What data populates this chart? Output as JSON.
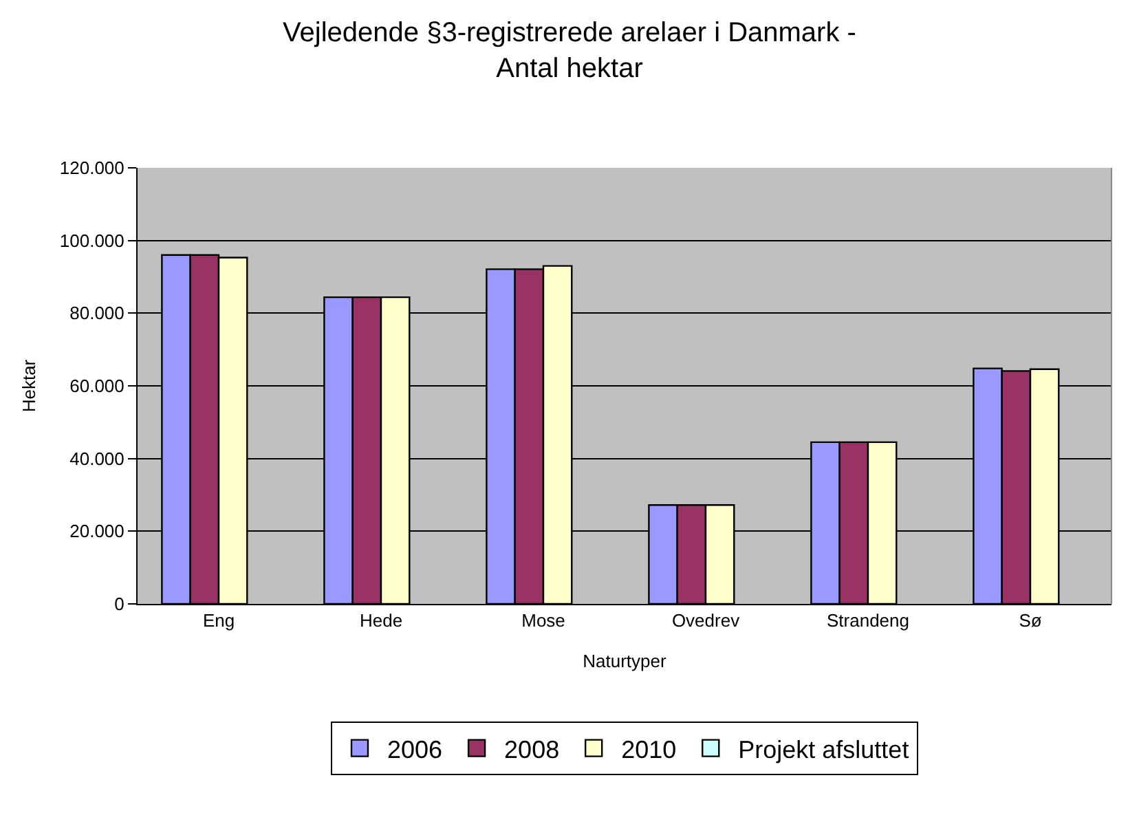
{
  "chart_data": {
    "type": "bar",
    "title": "Vejledende §3-registrerede arelaer i Danmark -\nAntal hektar",
    "xlabel": "Naturtyper",
    "ylabel": "Hektar",
    "categories": [
      "Eng",
      "Hede",
      "Mose",
      "Ovedrev",
      "Strandeng",
      "Sø"
    ],
    "series": [
      {
        "name": "2006",
        "color": "#9999ff",
        "values": [
          96000,
          84400,
          92100,
          27200,
          44500,
          64800
        ]
      },
      {
        "name": "2008",
        "color": "#993366",
        "values": [
          96000,
          84400,
          92100,
          27200,
          44500,
          64100
        ]
      },
      {
        "name": "2010",
        "color": "#ffffcc",
        "values": [
          95300,
          84400,
          93000,
          27200,
          44500,
          64600
        ]
      },
      {
        "name": "Projekt afsluttet",
        "color": "#ccffff",
        "values": [
          null,
          null,
          null,
          null,
          null,
          null
        ]
      }
    ],
    "ylim": [
      0,
      120000
    ],
    "yticks": [
      0,
      {
        "value": 20000,
        "label": "20.000"
      },
      {
        "value": 40000,
        "label": "40.000"
      },
      {
        "value": 60000,
        "label": "60.000"
      },
      {
        "value": 80000,
        "label": "80.000"
      },
      {
        "value": 100000,
        "label": "100.000"
      },
      {
        "value": 120000,
        "label": "120.000"
      }
    ],
    "grid": "y",
    "legend": "bottom"
  }
}
